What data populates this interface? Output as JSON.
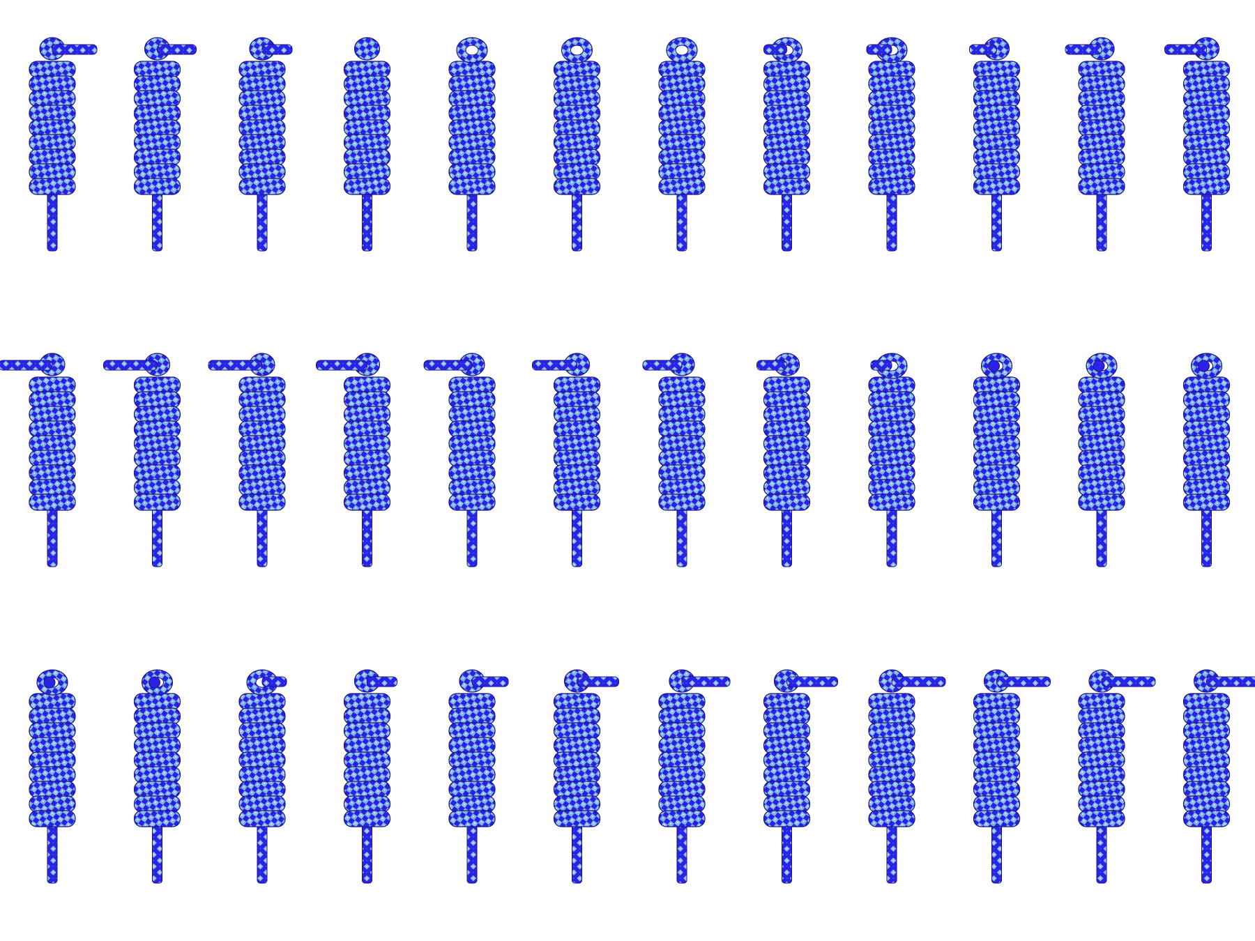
{
  "sheet": {
    "rows": 3,
    "columns": 12,
    "subject": "coiled-rope-knot",
    "colors": {
      "background": "#ffffff",
      "rope_primary": "#2a22e6",
      "rope_secondary": "#8ec0ea",
      "rope_dark": "#1a1580",
      "rope_highlight": "#c8e2f6"
    },
    "frames": [
      {
        "tail": "right",
        "tail_len": 0.45,
        "loop": "open"
      },
      {
        "tail": "right",
        "tail_len": 0.35,
        "loop": "open"
      },
      {
        "tail": "right",
        "tail_len": 0.2,
        "loop": "open"
      },
      {
        "tail": "none",
        "tail_len": 0.0,
        "loop": "open"
      },
      {
        "tail": "none",
        "tail_len": 0.0,
        "loop": "eye"
      },
      {
        "tail": "none",
        "tail_len": 0.0,
        "loop": "eye"
      },
      {
        "tail": "none",
        "tail_len": 0.0,
        "loop": "eye"
      },
      {
        "tail": "left",
        "tail_len": 0.08,
        "loop": "eye"
      },
      {
        "tail": "left",
        "tail_len": 0.12,
        "loop": "eye"
      },
      {
        "tail": "left",
        "tail_len": 0.15,
        "loop": "open"
      },
      {
        "tail": "left",
        "tail_len": 0.3,
        "loop": "open"
      },
      {
        "tail": "left",
        "tail_len": 0.4,
        "loop": "open"
      },
      {
        "tail": "left",
        "tail_len": 0.6,
        "loop": "open"
      },
      {
        "tail": "left",
        "tail_len": 0.6,
        "loop": "open"
      },
      {
        "tail": "left",
        "tail_len": 0.6,
        "loop": "open"
      },
      {
        "tail": "left",
        "tail_len": 0.55,
        "loop": "open"
      },
      {
        "tail": "left",
        "tail_len": 0.5,
        "loop": "open"
      },
      {
        "tail": "left",
        "tail_len": 0.45,
        "loop": "open"
      },
      {
        "tail": "left",
        "tail_len": 0.35,
        "loop": "open"
      },
      {
        "tail": "left",
        "tail_len": 0.2,
        "loop": "open"
      },
      {
        "tail": "left",
        "tail_len": 0.05,
        "loop": "eye"
      },
      {
        "tail": "end",
        "tail_len": 0.0,
        "loop": "eye"
      },
      {
        "tail": "end",
        "tail_len": 0.0,
        "loop": "eye"
      },
      {
        "tail": "end",
        "tail_len": 0.0,
        "loop": "eye"
      },
      {
        "tail": "end",
        "tail_len": 0.0,
        "loop": "eye"
      },
      {
        "tail": "end",
        "tail_len": 0.0,
        "loop": "eye"
      },
      {
        "tail": "right",
        "tail_len": 0.1,
        "loop": "eye"
      },
      {
        "tail": "right",
        "tail_len": 0.2,
        "loop": "open"
      },
      {
        "tail": "right",
        "tail_len": 0.3,
        "loop": "open"
      },
      {
        "tail": "right",
        "tail_len": 0.4,
        "loop": "open"
      },
      {
        "tail": "right",
        "tail_len": 0.5,
        "loop": "open"
      },
      {
        "tail": "right",
        "tail_len": 0.55,
        "loop": "open"
      },
      {
        "tail": "right",
        "tail_len": 0.6,
        "loop": "open"
      },
      {
        "tail": "right",
        "tail_len": 0.6,
        "loop": "open"
      },
      {
        "tail": "right",
        "tail_len": 0.6,
        "loop": "open"
      },
      {
        "tail": "right",
        "tail_len": 0.6,
        "loop": "open"
      }
    ]
  }
}
